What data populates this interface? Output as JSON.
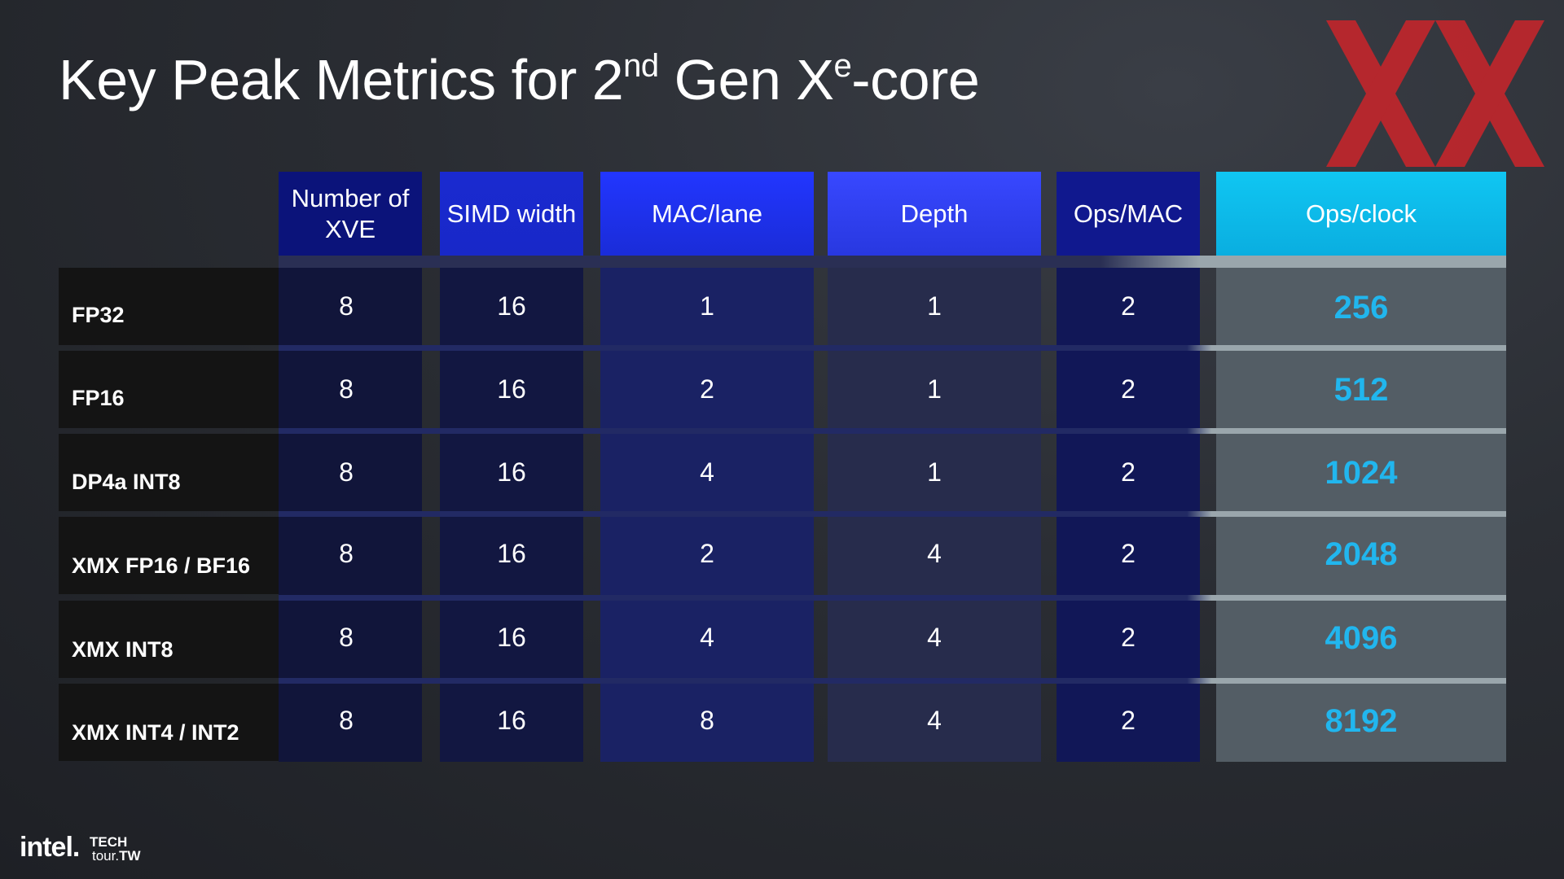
{
  "title": {
    "prefix": "Key Peak Metrics for 2",
    "sup1": "nd",
    "mid": " Gen X",
    "sup2": "e",
    "suffix": "-core"
  },
  "table": {
    "columns": [
      "Number of XVE",
      "SIMD width",
      "MAC/lane",
      "Depth",
      "Ops/MAC",
      "Ops/clock"
    ],
    "rows": [
      {
        "label": "FP32",
        "values": [
          "8",
          "16",
          "1",
          "1",
          "2",
          "256"
        ]
      },
      {
        "label": "FP16",
        "values": [
          "8",
          "16",
          "2",
          "1",
          "2",
          "512"
        ]
      },
      {
        "label": "DP4a INT8",
        "values": [
          "8",
          "16",
          "4",
          "1",
          "2",
          "1024"
        ]
      },
      {
        "label": "XMX FP16 / BF16",
        "values": [
          "8",
          "16",
          "2",
          "4",
          "2",
          "2048"
        ]
      },
      {
        "label": "XMX INT8",
        "values": [
          "8",
          "16",
          "4",
          "4",
          "2",
          "4096"
        ]
      },
      {
        "label": "XMX INT4 / INT2",
        "values": [
          "8",
          "16",
          "8",
          "4",
          "2",
          "8192"
        ]
      }
    ]
  },
  "footer": {
    "brand": "intel.",
    "event_line1": "TECH",
    "event_line2_a": "tour.",
    "event_line2_b": "TW"
  },
  "colors": {
    "accent_blue": "#21b6ee",
    "header_cyan": "#10c6f2",
    "watermark_red": "#c0262c"
  },
  "icons": [
    "xx-watermark-logo"
  ]
}
